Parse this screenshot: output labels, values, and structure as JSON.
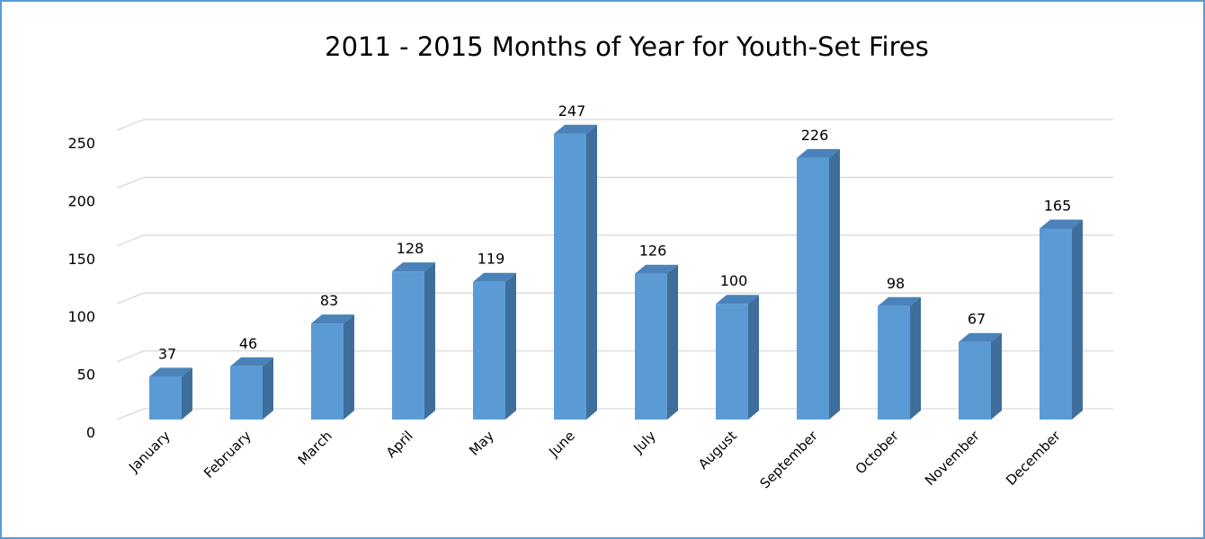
{
  "chart_data": {
    "type": "bar",
    "title": "2011 - 2015 Months of Year for Youth-Set Fires",
    "categories": [
      "January",
      "February",
      "March",
      "April",
      "May",
      "June",
      "July",
      "August",
      "September",
      "October",
      "November",
      "December"
    ],
    "values": [
      37,
      46,
      83,
      128,
      119,
      247,
      126,
      100,
      226,
      98,
      67,
      165
    ],
    "yticks": [
      "0",
      "50",
      "100",
      "150",
      "200",
      "250"
    ],
    "ylim": [
      0,
      250
    ],
    "xlabel": "",
    "ylabel": "",
    "grid": true,
    "legend": "none",
    "style": "3d-column",
    "colors": {
      "front": "#5b9bd5",
      "side": "#3e6f9c",
      "top": "#4a82b9",
      "grid": "#d9d9d9",
      "border": "#5b9bd5"
    }
  }
}
